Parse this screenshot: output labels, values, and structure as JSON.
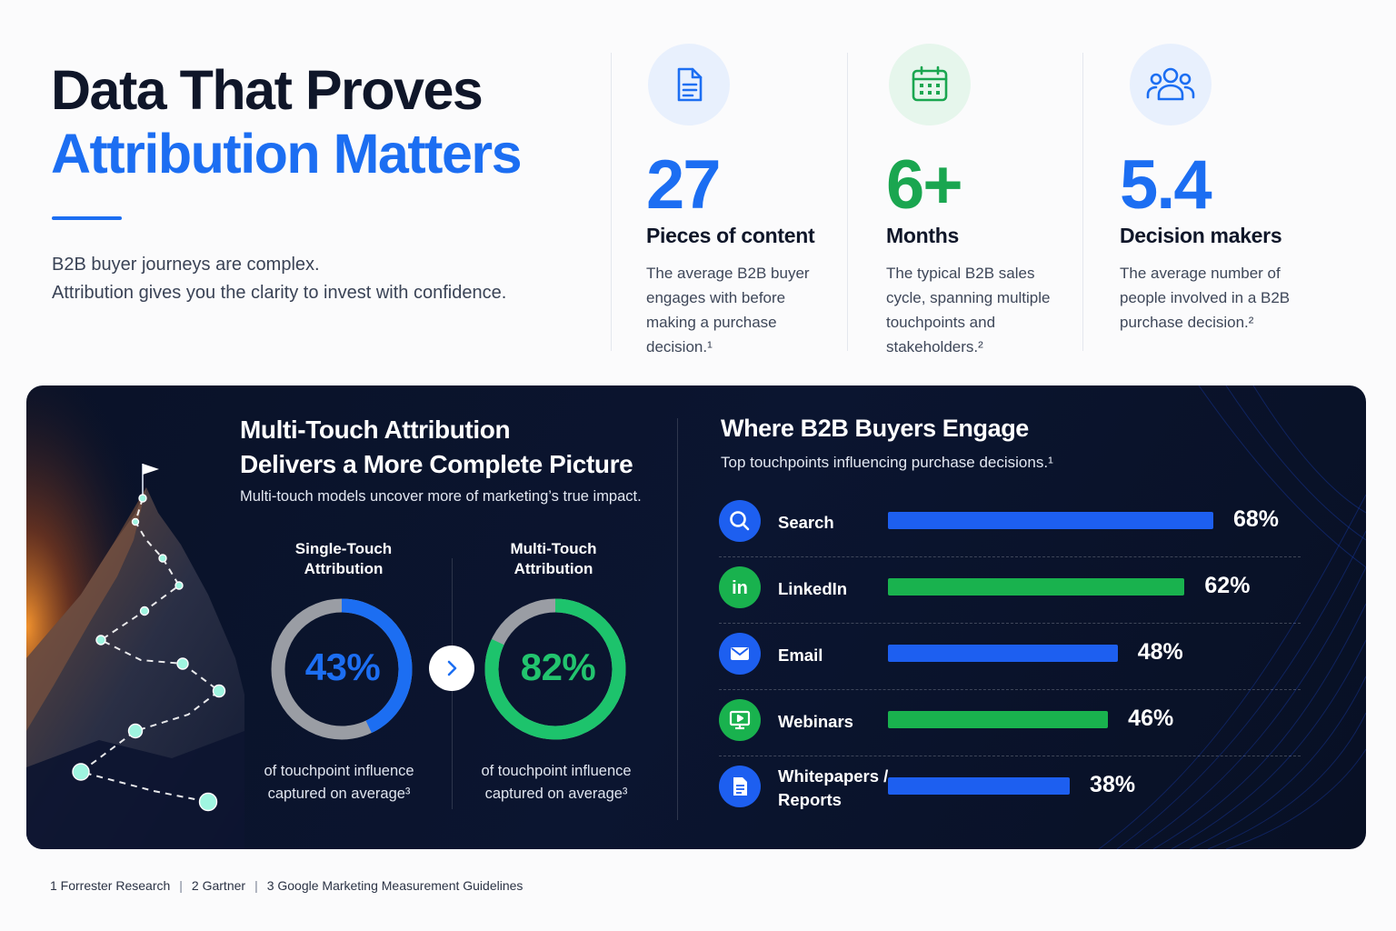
{
  "hero": {
    "title_line1": "Data That Proves",
    "title_line2": "Attribution Matters",
    "subtitle_line1": "B2B buyer journeys are complex.",
    "subtitle_line2": "Attribution gives you the clarity to invest with confidence."
  },
  "stats": [
    {
      "icon": "document-icon",
      "value": "27",
      "label": "Pieces of content",
      "desc": [
        "The average B2B buyer",
        "engages with before",
        "making a purchase",
        "decision.¹"
      ],
      "color": "#1c6ef2",
      "icon_bg": "#e8f0fd"
    },
    {
      "icon": "calendar-icon",
      "value": "6+",
      "label": "Months",
      "desc": [
        "The typical B2B sales",
        "cycle, spanning multiple",
        "touchpoints and",
        "stakeholders.²"
      ],
      "color": "#1aa650",
      "icon_bg": "#e6f6ec"
    },
    {
      "icon": "people-icon",
      "value": "5.4",
      "label": "Decision makers",
      "desc": [
        "The average number of",
        "people involved in a B2B",
        "purchase decision.²"
      ],
      "color": "#1c6ef2",
      "icon_bg": "#e8f0fd"
    }
  ],
  "multitouch": {
    "title_line1": "Multi-Touch Attribution",
    "title_line2": "Delivers a More Complete Picture",
    "subtitle": "Multi-touch models uncover more of marketing’s true impact."
  },
  "engage": {
    "title": "Where B2B Buyers Engage",
    "subtitle": "Top touchpoints influencing purchase decisions.¹"
  },
  "chart_data": [
    {
      "type": "pie",
      "title": "Single-Touch Attribution vs Multi-Touch Attribution",
      "series": [
        {
          "name": "Single-Touch Attribution",
          "value": 43,
          "value_label": "43%",
          "label_lines": [
            "Single-Touch",
            "Attribution"
          ],
          "caption_lines": [
            "of touchpoint influence",
            "captured on average³"
          ],
          "color": "#1c6ef2",
          "value_color": "#1c6ef2"
        },
        {
          "name": "Multi-Touch Attribution",
          "value": 82,
          "value_label": "82%",
          "label_lines": [
            "Multi-Touch",
            "Attribution"
          ],
          "caption_lines": [
            "of touchpoint influence",
            "captured on average³"
          ],
          "color": "#1dc36c",
          "value_color": "#22c46e"
        }
      ],
      "track_color": "#9a9da4"
    },
    {
      "type": "bar",
      "orientation": "horizontal",
      "title": "Where B2B Buyers Engage",
      "categories": [
        "Search",
        "LinkedIn",
        "Email",
        "Webinars",
        "Whitepapers / Reports"
      ],
      "category_lines": [
        [
          "Search"
        ],
        [
          "LinkedIn"
        ],
        [
          "Email"
        ],
        [
          "Webinars"
        ],
        [
          "Whitepapers /",
          "Reports"
        ]
      ],
      "values": [
        68,
        62,
        48,
        46,
        38
      ],
      "value_labels": [
        "68%",
        "62%",
        "48%",
        "46%",
        "38%"
      ],
      "icons": [
        "search-icon",
        "linkedin-icon",
        "email-icon",
        "webinar-icon",
        "document-icon"
      ],
      "colors": [
        "#1d5ff0",
        "#19b24e",
        "#1d5ff0",
        "#19b24e",
        "#1d5ff0"
      ],
      "xlim": [
        0,
        68
      ]
    }
  ],
  "footnotes": [
    "1  Forrester Research",
    "2  Gartner",
    "3  Google Marketing Measurement Guidelines"
  ]
}
